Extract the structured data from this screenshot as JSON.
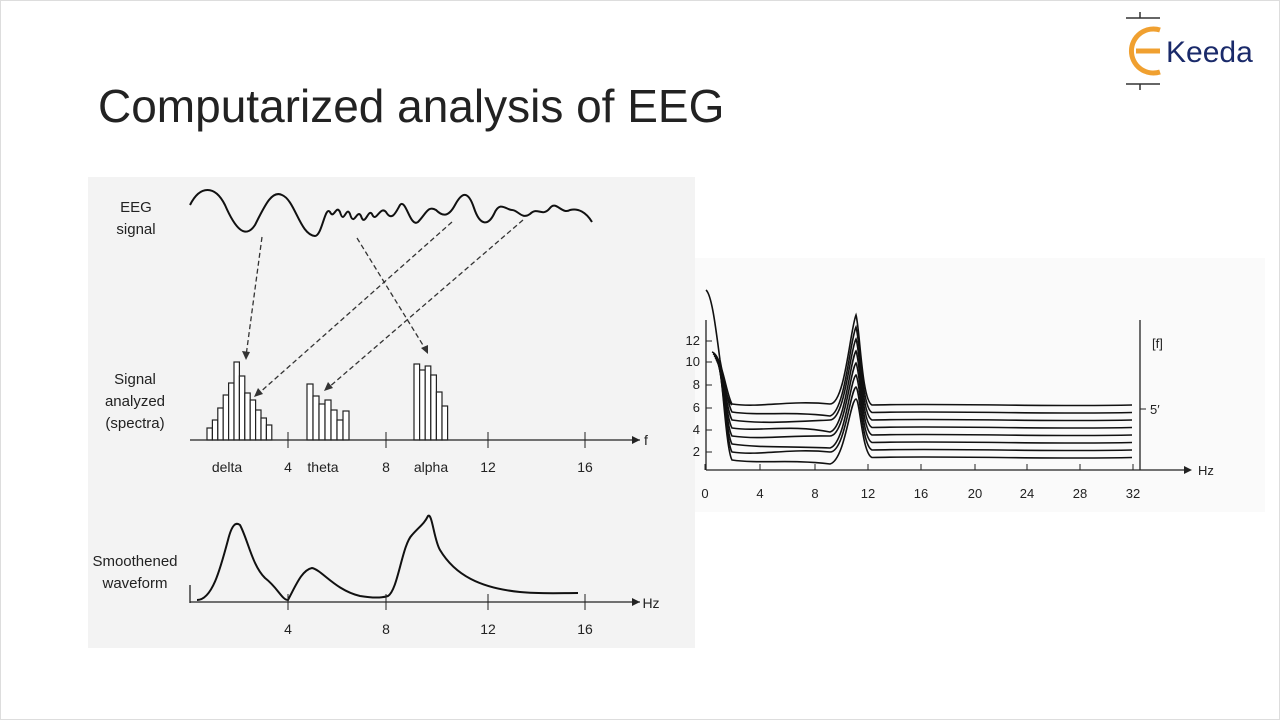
{
  "header": {
    "title": "Computarized analysis of EEG",
    "logo": "Keeda"
  },
  "figure_left": {
    "eeg_label": [
      "EEG",
      "signal"
    ],
    "spectra_label": [
      "Signal",
      "analyzed",
      "(spectra)"
    ],
    "smooth_label": [
      "Smoothened",
      "waveform"
    ],
    "bands": [
      "delta",
      "theta",
      "alpha"
    ],
    "spectra_ticks": [
      "4",
      "8",
      "12",
      "16"
    ],
    "spectra_axis_end": "f",
    "smooth_ticks": [
      "4",
      "8",
      "12",
      "16"
    ],
    "smooth_axis_unit": "Hz"
  },
  "figure_right": {
    "yticks": [
      "2",
      "4",
      "6",
      "8",
      "10",
      "12"
    ],
    "xticks": [
      "0",
      "4",
      "8",
      "12",
      "16",
      "20",
      "24",
      "28",
      "32"
    ],
    "x_unit": "Hz",
    "right_labels": [
      "[f]",
      "5′"
    ]
  }
}
